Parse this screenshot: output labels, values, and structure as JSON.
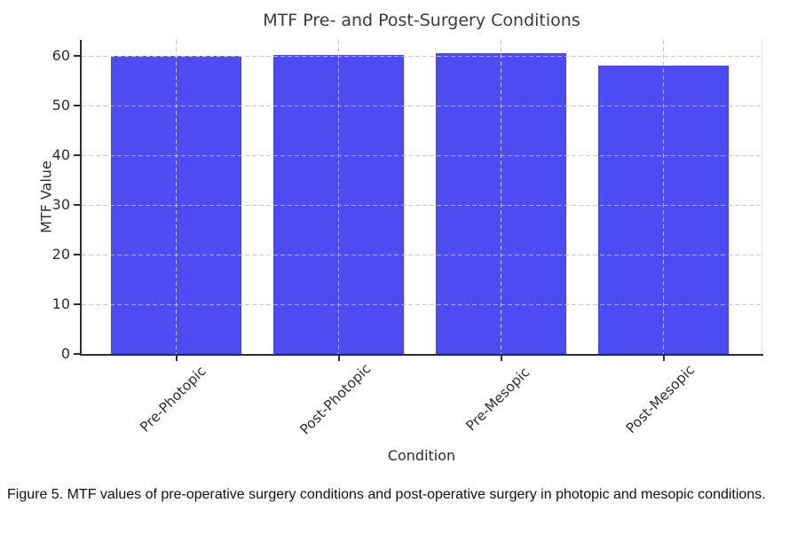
{
  "chart_data": {
    "type": "bar",
    "title": "MTF Pre- and Post-Surgery Conditions",
    "xlabel": "Condition",
    "ylabel": "MTF Value",
    "categories": [
      "Pre-Photopic",
      "Post-Photopic",
      "Pre-Mesopic",
      "Post-Mesopic"
    ],
    "values": [
      60.0,
      60.2,
      60.7,
      58.2
    ],
    "yticks": [
      0,
      10,
      20,
      30,
      40,
      50,
      60
    ],
    "ylim": [
      0,
      63.3
    ],
    "grid": "dashed gridlines on both axes, drawn over bars",
    "legend": "none",
    "bar_color": "#4c4cf2",
    "grid_color": "#c6c6c6",
    "axis_color": "#2f2f2f"
  },
  "caption": "Figure 5. MTF values of pre-operative surgery conditions and post-operative surgery in photopic and mesopic conditions."
}
